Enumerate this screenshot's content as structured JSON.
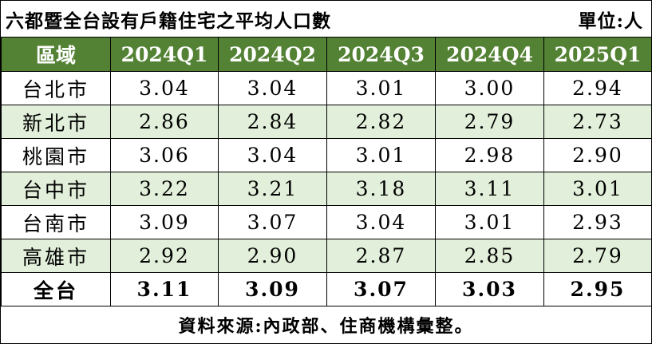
{
  "title": "六都暨全台設有戶籍住宅之平均人口數",
  "unit": "單位:人",
  "columns": [
    "區域",
    "2024Q1",
    "2024Q2",
    "2024Q3",
    "2024Q4",
    "2025Q1"
  ],
  "rows": [
    {
      "region": "台北市",
      "values": [
        "3.04",
        "3.04",
        "3.01",
        "3.00",
        "2.94"
      ]
    },
    {
      "region": "新北市",
      "values": [
        "2.86",
        "2.84",
        "2.82",
        "2.79",
        "2.73"
      ]
    },
    {
      "region": "桃園市",
      "values": [
        "3.06",
        "3.04",
        "3.01",
        "2.98",
        "2.90"
      ]
    },
    {
      "region": "台中市",
      "values": [
        "3.22",
        "3.21",
        "3.18",
        "3.11",
        "3.01"
      ]
    },
    {
      "region": "台南市",
      "values": [
        "3.09",
        "3.07",
        "3.04",
        "3.01",
        "2.93"
      ]
    },
    {
      "region": "高雄市",
      "values": [
        "2.92",
        "2.90",
        "2.87",
        "2.85",
        "2.79"
      ]
    },
    {
      "region": "全台",
      "values": [
        "3.11",
        "3.09",
        "3.07",
        "3.03",
        "2.95"
      ]
    }
  ],
  "source": "資料來源:內政部、住商機構彙整。",
  "colors": {
    "header_bg": "#548235",
    "header_text": "#ffffff",
    "alt_row_bg": "#e2efda",
    "border": "#000000"
  }
}
